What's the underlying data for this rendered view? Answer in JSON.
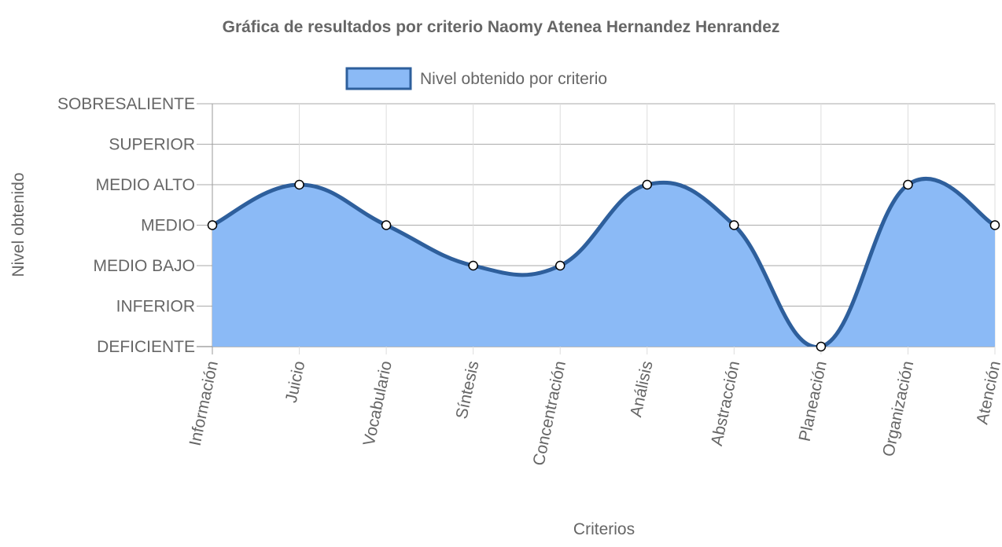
{
  "chart_data": {
    "type": "line",
    "title": "Gráfica de resultados por criterio Naomy Atenea Hernandez Henrandez",
    "xlabel": "Criterios",
    "ylabel": "Nivel obtenido",
    "categories": [
      "Información",
      "Juicio",
      "Vocabulario",
      "Síntesis",
      "Concentración",
      "Análisis",
      "Abstracción",
      "Planeación",
      "Organización",
      "Atención"
    ],
    "y_levels": [
      "DEFICIENTE",
      "INFERIOR",
      "MEDIO BAJO",
      "MEDIO",
      "MEDIO ALTO",
      "SUPERIOR",
      "SOBRESALIENTE"
    ],
    "ylim": [
      0,
      6
    ],
    "grid": true,
    "legend_position": "top",
    "series": [
      {
        "name": "Nivel obtenido por criterio",
        "values": [
          3,
          4,
          3,
          2,
          2,
          4,
          3,
          0,
          4,
          3
        ],
        "line_color": "#2e5f9c",
        "fill_color": "#8bbaf6"
      }
    ]
  }
}
